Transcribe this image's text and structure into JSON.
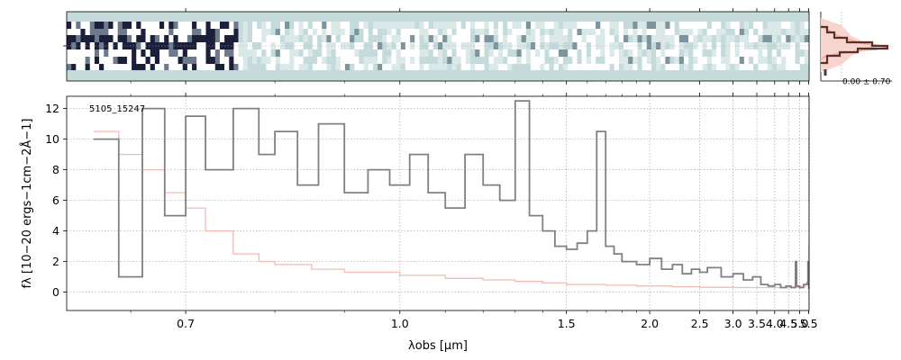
{
  "chart_data": [
    {
      "panel": "spectrum-2d",
      "type": "heatmap",
      "colormap": [
        "#c5dbdb",
        "#ffffff",
        "#1b1f3a"
      ]
    },
    {
      "panel": "cross-dispersion-profile",
      "type": "line",
      "annotation": "0.00 ± 0.70",
      "series": [
        {
          "name": "",
          "color": "#5c2f26"
        },
        {
          "name": "",
          "color": "#f4c2bc"
        }
      ]
    },
    {
      "panel": "spectrum-1d",
      "type": "line",
      "x_scale": "reciprocal",
      "xlabel": "λobs [μm]",
      "ylabel": "fλ [10−20 ergs−1cm−2Å−1]",
      "xlim": [
        0.6,
        5.52
      ],
      "ylim": [
        -1.2,
        12.8
      ],
      "xticks": [
        0.7,
        1.0,
        1.5,
        2.0,
        2.5,
        3.0,
        3.5,
        4.0,
        4.5,
        5.0,
        5.5
      ],
      "xtick_labels": [
        "0.7",
        "1.0",
        "1.5",
        "2.0",
        "2.5",
        "3.0",
        "3.5",
        "4.0",
        "4.5",
        "5.0",
        "5.5"
      ],
      "yticks": [
        0,
        2,
        4,
        6,
        8,
        10,
        12
      ],
      "ytick_labels": [
        "0",
        "2",
        "4",
        "6",
        "8",
        "10",
        "12"
      ],
      "annotation": "5105_15247",
      "grid": true,
      "series": [
        {
          "name": "",
          "color": "#808080",
          "x": [
            0.62,
            0.64,
            0.66,
            0.68,
            0.7,
            0.72,
            0.75,
            0.78,
            0.8,
            0.83,
            0.86,
            0.9,
            0.94,
            0.98,
            1.02,
            1.06,
            1.1,
            1.15,
            1.2,
            1.25,
            1.3,
            1.35,
            1.4,
            1.45,
            1.5,
            1.55,
            1.6,
            1.65,
            1.7,
            1.75,
            1.8,
            1.9,
            2.0,
            2.1,
            2.2,
            2.3,
            2.4,
            2.5,
            2.6,
            2.8,
            3.0,
            3.2,
            3.4,
            3.6,
            3.8,
            4.0,
            4.2,
            4.4,
            4.6,
            4.75,
            4.8,
            4.85,
            5.0,
            5.2,
            5.4,
            5.45,
            5.5
          ],
          "y": [
            10.0,
            1.0,
            12.0,
            5.0,
            11.5,
            8.0,
            12.0,
            9.0,
            10.5,
            7.0,
            11.0,
            6.5,
            8.0,
            7.0,
            9.0,
            6.5,
            5.5,
            9.0,
            7.0,
            6.0,
            12.5,
            5.0,
            4.0,
            3.0,
            2.8,
            3.2,
            4.0,
            10.5,
            3.0,
            2.5,
            2.0,
            1.8,
            2.2,
            1.5,
            1.8,
            1.2,
            1.5,
            1.3,
            1.6,
            1.0,
            1.2,
            0.8,
            1.0,
            0.5,
            0.4,
            0.5,
            0.3,
            0.4,
            0.3,
            0.3,
            2.0,
            0.4,
            0.3,
            0.5,
            0.6,
            2.0,
            0.2
          ]
        },
        {
          "name": "",
          "color": "#f4b9b2",
          "x": [
            0.62,
            0.64,
            0.66,
            0.68,
            0.7,
            0.72,
            0.75,
            0.78,
            0.8,
            0.85,
            0.9,
            1.0,
            1.1,
            1.2,
            1.3,
            1.4,
            1.5,
            1.7,
            1.9,
            2.2,
            2.5,
            3.0,
            3.5,
            4.0,
            4.5,
            5.0,
            5.3,
            5.45,
            5.5
          ],
          "y": [
            10.5,
            9.0,
            8.0,
            6.5,
            5.5,
            4.0,
            2.5,
            2.0,
            1.8,
            1.5,
            1.3,
            1.1,
            0.9,
            0.8,
            0.7,
            0.6,
            0.5,
            0.45,
            0.4,
            0.35,
            0.32,
            0.3,
            0.3,
            0.3,
            0.32,
            0.35,
            0.5,
            1.5,
            3.0
          ]
        }
      ]
    }
  ]
}
